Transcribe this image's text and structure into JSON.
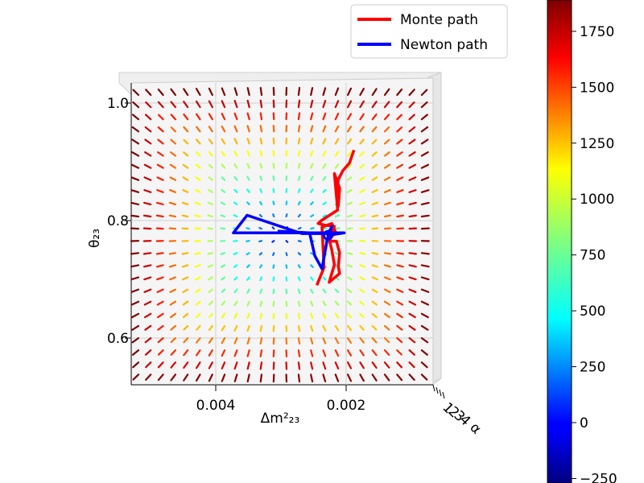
{
  "chart_data": {
    "type": "3d-quiver",
    "xlabel": "Δm²₂₃",
    "ylabel": "θ₂₃",
    "zlabel": "α",
    "x_ticks": [
      0.004,
      0.002
    ],
    "y_ticks": [
      0.6,
      0.8,
      1.0
    ],
    "z_ticks": [
      "1",
      "2",
      "3",
      "4"
    ],
    "view": "top-down",
    "legend_placement": "top-right",
    "series": [
      {
        "name": "Monte path",
        "color": "#ff0000",
        "points": [
          [
            0.00188,
            0.92
          ],
          [
            0.00195,
            0.898
          ],
          [
            0.00205,
            0.885
          ],
          [
            0.00212,
            0.87
          ],
          [
            0.00215,
            0.842
          ],
          [
            0.00212,
            0.825
          ],
          [
            0.0021,
            0.855
          ],
          [
            0.00218,
            0.88
          ],
          [
            0.00213,
            0.818
          ],
          [
            0.00238,
            0.8
          ],
          [
            0.00243,
            0.795
          ],
          [
            0.00232,
            0.792
          ],
          [
            0.00218,
            0.79
          ],
          [
            0.00222,
            0.78
          ],
          [
            0.00225,
            0.765
          ],
          [
            0.00215,
            0.765
          ],
          [
            0.0021,
            0.745
          ],
          [
            0.00212,
            0.722
          ],
          [
            0.0021,
            0.71
          ],
          [
            0.00226,
            0.695
          ],
          [
            0.00218,
            0.725
          ],
          [
            0.00222,
            0.75
          ],
          [
            0.00226,
            0.768
          ],
          [
            0.00216,
            0.78
          ],
          [
            0.00222,
            0.795
          ],
          [
            0.00237,
            0.789
          ],
          [
            0.00234,
            0.72
          ],
          [
            0.00245,
            0.69
          ]
        ]
      },
      {
        "name": "Newton path",
        "color": "#0000ff",
        "points": [
          [
            0.00305,
            0.782
          ],
          [
            0.00256,
            0.779
          ],
          [
            0.00248,
            0.74
          ],
          [
            0.00237,
            0.718
          ],
          [
            0.00229,
            0.768
          ],
          [
            0.00222,
            0.79
          ],
          [
            0.00228,
            0.775
          ],
          [
            0.00203,
            0.779
          ],
          [
            0.00225,
            0.779
          ],
          [
            0.00229,
            0.778
          ],
          [
            0.00268,
            0.778
          ],
          [
            0.00352,
            0.809
          ],
          [
            0.00373,
            0.779
          ],
          [
            0.00206,
            0.779
          ]
        ]
      }
    ],
    "colorbar": {
      "range": [
        -270,
        1890
      ],
      "ticks": [
        -250,
        0,
        250,
        500,
        750,
        1000,
        1250,
        1500,
        1750
      ],
      "colormap": "jet"
    },
    "quiver_field": {
      "colormap": "jet",
      "value_range": [
        0,
        1890
      ],
      "description": "vectors radiate from (0.0022, 0.78)"
    }
  }
}
